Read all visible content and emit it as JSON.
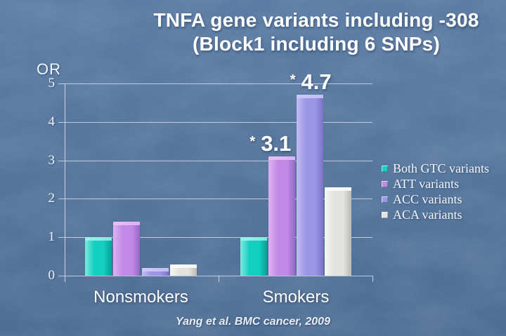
{
  "slide": {
    "title_line1": "TNFA gene variants including -308",
    "title_line2": "(Block1 including 6 SNPs)",
    "caption": "Yang et al. BMC cancer, 2009",
    "background_color": "#54749c",
    "text_color": "#ffffff"
  },
  "chart_data": {
    "type": "bar",
    "title": "TNFA gene variants including -308 (Block1 including 6 SNPs)",
    "ylabel": "OR",
    "xlabel": "",
    "ylim": [
      0,
      5
    ],
    "yticks": [
      0,
      1,
      2,
      3,
      4,
      5
    ],
    "grid": true,
    "legend_position": "right",
    "categories": [
      "Nonsmokers",
      "Smokers"
    ],
    "series": [
      {
        "name": "Both GTC variants",
        "values": [
          1.0,
          1.0
        ],
        "color": "#12cfc0",
        "color_light": "#7deadf",
        "color_dark": "#0a9e95",
        "color_cap": "#9cf0e8"
      },
      {
        "name": "ATT variants",
        "values": [
          1.4,
          3.1
        ],
        "color": "#c28ae6",
        "color_light": "#ddb3f2",
        "color_dark": "#9569c4",
        "color_cap": "#e8c0f4"
      },
      {
        "name": "ACC variants",
        "values": [
          0.2,
          4.7
        ],
        "color": "#9c96e6",
        "color_light": "#c2bdf3",
        "color_dark": "#7c72c9",
        "color_cap": "#cdc9f6"
      },
      {
        "name": "ACA variants",
        "values": [
          0.3,
          2.3
        ],
        "color": "#e2e2de",
        "color_light": "#f6f6f4",
        "color_dark": "#b9b9b4",
        "color_cap": "#fafaf8"
      }
    ],
    "annotations": [
      {
        "category": "Smokers",
        "series": "ATT variants",
        "star": "*",
        "value": "3.1"
      },
      {
        "category": "Smokers",
        "series": "ACC variants",
        "star": "*",
        "value": "4.7"
      }
    ]
  }
}
